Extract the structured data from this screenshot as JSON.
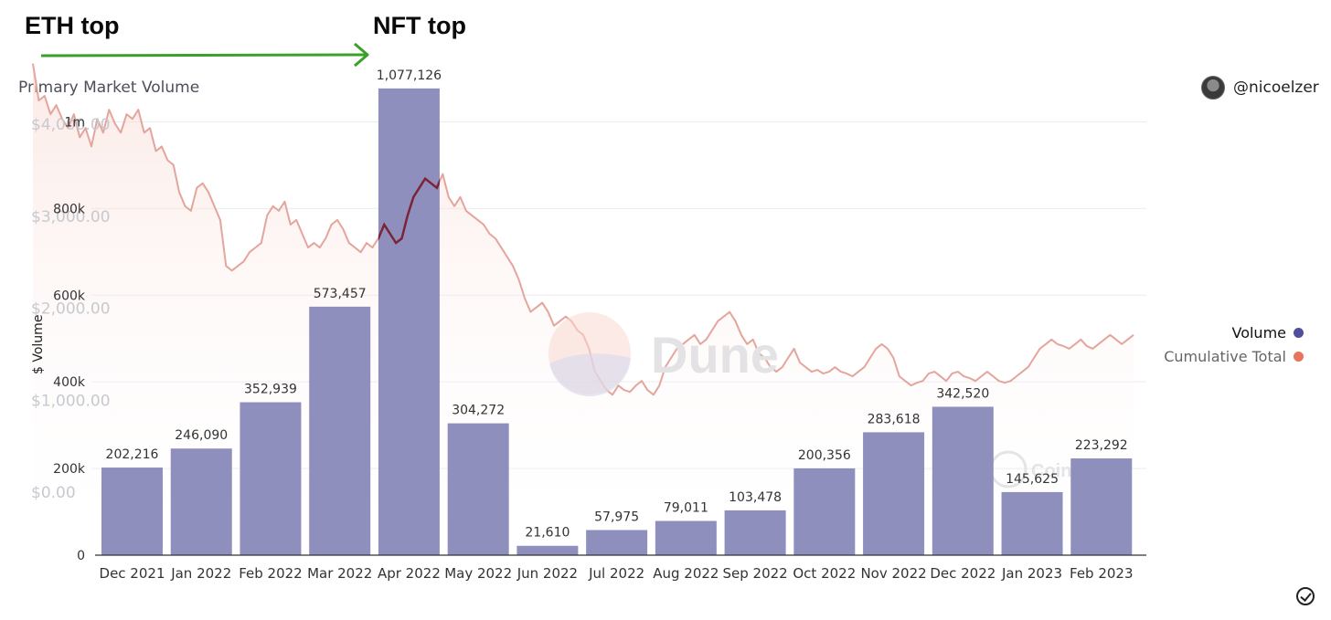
{
  "annotations": {
    "eth_top": "ETH top",
    "nft_top": "NFT top",
    "arrow_color": "#3aa02a"
  },
  "header": {
    "title": "Primary Market Volume",
    "author": "@nicoelzer"
  },
  "legend": {
    "volume_label": "Volume",
    "volume_color": "#4f4f9a",
    "cumulative_label": "Cumulative Total",
    "cumulative_color": "#e8745c"
  },
  "watermarks": {
    "dune": "Dune",
    "coingecko": "CoinGecko"
  },
  "chart_data": [
    {
      "type": "bar",
      "title": "Primary Market Volume",
      "ylabel": "$ Volume",
      "categories": [
        "Dec 2021",
        "Jan 2022",
        "Feb 2022",
        "Mar 2022",
        "Apr 2022",
        "May 2022",
        "Jun 2022",
        "Jul 2022",
        "Aug 2022",
        "Sep 2022",
        "Oct 2022",
        "Nov 2022",
        "Dec 2022",
        "Jan 2023",
        "Feb 2023"
      ],
      "series": [
        {
          "name": "Volume",
          "values": [
            202216,
            246090,
            352939,
            573457,
            1077126,
            304272,
            21610,
            57975,
            79011,
            103478,
            200356,
            283618,
            342520,
            145625,
            223292
          ],
          "labels": [
            "202,216",
            "246,090",
            "352,939",
            "573,457",
            "1,077,126",
            "304,272",
            "21,610",
            "57,975",
            "79,011",
            "103,478",
            "200,356",
            "283,618",
            "342,520",
            "145,625",
            "223,292"
          ]
        }
      ],
      "ylim": [
        0,
        1100000
      ],
      "y_ticks": [
        0,
        200000,
        400000,
        600000,
        800000,
        1000000
      ],
      "y_tick_labels": [
        "0",
        "200k",
        "400k",
        "600k",
        "800k",
        "1m"
      ],
      "grid": true,
      "bar_color": "#8f8fbd",
      "legend_position": "right"
    },
    {
      "type": "line",
      "description_source": "ETH price overlay",
      "ylim": [
        0,
        4700
      ],
      "y_ticks": [
        0,
        1000,
        2000,
        3000,
        4000
      ],
      "y_tick_labels": [
        "$0.00",
        "$1,000.00",
        "$2,000.00",
        "$3,000.00",
        "$4,000.00"
      ],
      "line_color": "#e4a59c",
      "highlight_color": "#7a2438",
      "x_range": [
        "2021-11-10",
        "2023-02-28"
      ],
      "x_labeled_anchor": {
        "start": "2021-11-10",
        "end": "2023-02-28"
      },
      "values": [
        4650,
        4250,
        4300,
        4100,
        4200,
        4050,
        3950,
        4100,
        3850,
        3950,
        3750,
        4050,
        3900,
        4150,
        4000,
        3900,
        4100,
        4050,
        4150,
        3900,
        3950,
        3700,
        3750,
        3600,
        3550,
        3250,
        3100,
        3050,
        3300,
        3350,
        3250,
        3100,
        2950,
        2450,
        2400,
        2450,
        2500,
        2600,
        2650,
        2700,
        3000,
        3100,
        3050,
        3150,
        2900,
        2950,
        2800,
        2650,
        2700,
        2650,
        2750,
        2900,
        2950,
        2850,
        2700,
        2650,
        2600,
        2700,
        2650,
        2750,
        2900,
        2800,
        2700,
        2750,
        3000,
        3200,
        3300,
        3400,
        3350,
        3300,
        3450,
        3200,
        3100,
        3200,
        3050,
        3000,
        2950,
        2900,
        2800,
        2750,
        2650,
        2550,
        2450,
        2300,
        2100,
        1950,
        2000,
        2050,
        1950,
        1800,
        1850,
        1900,
        1850,
        1750,
        1700,
        1550,
        1300,
        1200,
        1100,
        1050,
        1150,
        1100,
        1080,
        1150,
        1200,
        1100,
        1050,
        1150,
        1350,
        1450,
        1550,
        1600,
        1650,
        1700,
        1600,
        1650,
        1750,
        1850,
        1900,
        1950,
        1850,
        1700,
        1600,
        1650,
        1500,
        1450,
        1350,
        1300,
        1350,
        1450,
        1550,
        1400,
        1350,
        1300,
        1320,
        1280,
        1300,
        1350,
        1300,
        1280,
        1250,
        1300,
        1350,
        1450,
        1550,
        1600,
        1550,
        1450,
        1250,
        1200,
        1150,
        1180,
        1200,
        1280,
        1300,
        1250,
        1200,
        1280,
        1300,
        1250,
        1230,
        1200,
        1250,
        1300,
        1250,
        1200,
        1180,
        1200,
        1250,
        1300,
        1350,
        1450,
        1550,
        1600,
        1650,
        1600,
        1580,
        1550,
        1600,
        1650,
        1580,
        1550,
        1600,
        1650,
        1700,
        1650,
        1600,
        1650,
        1700
      ]
    }
  ],
  "corner_icon": "check-circle-icon"
}
